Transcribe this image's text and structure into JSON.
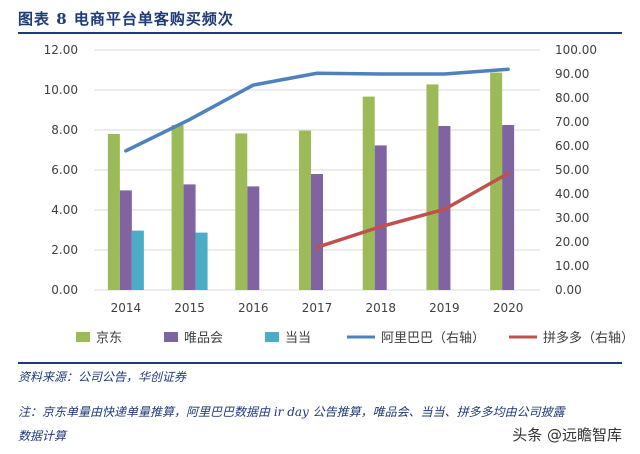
{
  "title": "图表 8    电商平台单客购买频次",
  "chart_data": {
    "type": "bar",
    "title": "图表 8    电商平台单客购买频次",
    "categories": [
      "2014",
      "2015",
      "2016",
      "2017",
      "2018",
      "2019",
      "2020"
    ],
    "ylim": [
      0,
      12
    ],
    "y2lim": [
      0,
      100
    ],
    "yticks": [
      "0.00",
      "2.00",
      "4.00",
      "6.00",
      "8.00",
      "10.00",
      "12.00"
    ],
    "y2ticks": [
      "0.00",
      "10.00",
      "20.00",
      "30.00",
      "40.00",
      "50.00",
      "60.00",
      "70.00",
      "80.00",
      "90.00",
      "100.00"
    ],
    "grid": true,
    "legend_position": "bottom",
    "series": [
      {
        "name": "京东",
        "type": "bar",
        "axis": "left",
        "color": "#9bbb59",
        "values": [
          7.8,
          8.25,
          7.83,
          7.97,
          9.67,
          10.28,
          10.87
        ]
      },
      {
        "name": "唯品会",
        "type": "bar",
        "axis": "left",
        "color": "#8064a2",
        "values": [
          4.98,
          5.28,
          5.18,
          5.8,
          7.23,
          8.2,
          8.25
        ]
      },
      {
        "name": "当当",
        "type": "bar",
        "axis": "left",
        "color": "#4bacc6",
        "values": [
          2.97,
          2.87,
          null,
          null,
          null,
          null,
          null
        ]
      },
      {
        "name": "阿里巴巴（右轴）",
        "type": "line",
        "axis": "right",
        "color": "#4f81bd",
        "values": [
          58,
          71,
          85.4,
          90.3,
          90,
          90,
          92
        ]
      },
      {
        "name": "拼多多（右轴）",
        "type": "line",
        "axis": "right",
        "color": "#c0504d",
        "values": [
          null,
          null,
          null,
          17.8,
          26.4,
          33.6,
          48.6
        ]
      }
    ]
  },
  "source": "资料来源：公司公告，华创证券",
  "note1": "注：京东单量由快递单量推算，阿里巴巴数据由 ir day 公告推算，唯品会、当当、拼多多均由公司披露",
  "note2": "数据计算",
  "watermark": "头条 @远瞻智库"
}
